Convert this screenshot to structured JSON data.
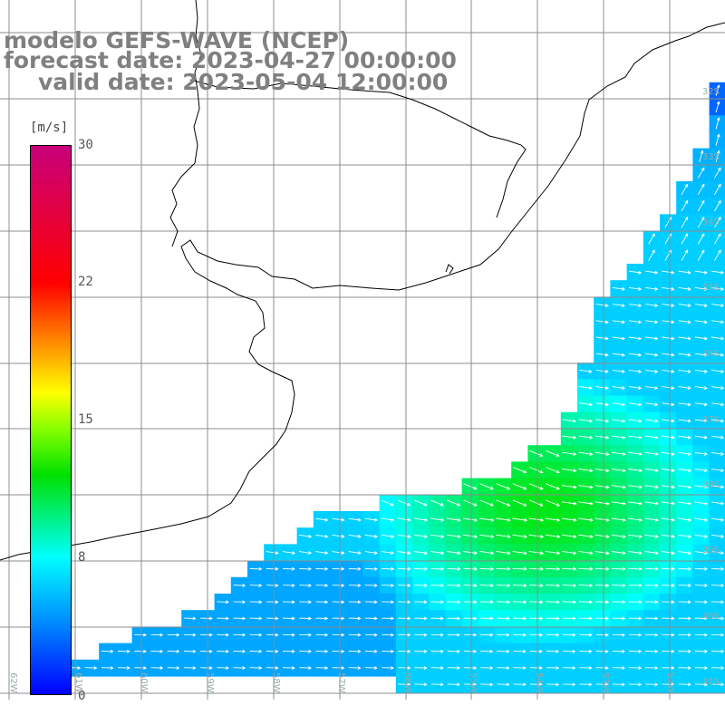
{
  "title": {
    "line1": "modelo GEFS-WAVE (NCEP)",
    "line2": "forecast date: 2023-04-27 00:00:00",
    "line3": "valid date: 2023-05-04 12:00:00"
  },
  "colorbar": {
    "unit": "[m/s]",
    "ticks": [
      "30",
      "22",
      "15",
      "8",
      "0"
    ]
  },
  "lat_labels": [
    "32S",
    "33S",
    "34S",
    "35S",
    "36S",
    "37S",
    "38S",
    "39S",
    "40S",
    "41S"
  ],
  "lon_labels": [
    "62W",
    "61W",
    "60W",
    "59W",
    "58W",
    "57W",
    "56W",
    "55W",
    "54W",
    "53W",
    "52W"
  ],
  "colors": {
    "land": "#ffffff",
    "coastline": "#000000",
    "grid": "#8c8c8c",
    "arrow": "#ffffff",
    "text": "#808080"
  }
}
